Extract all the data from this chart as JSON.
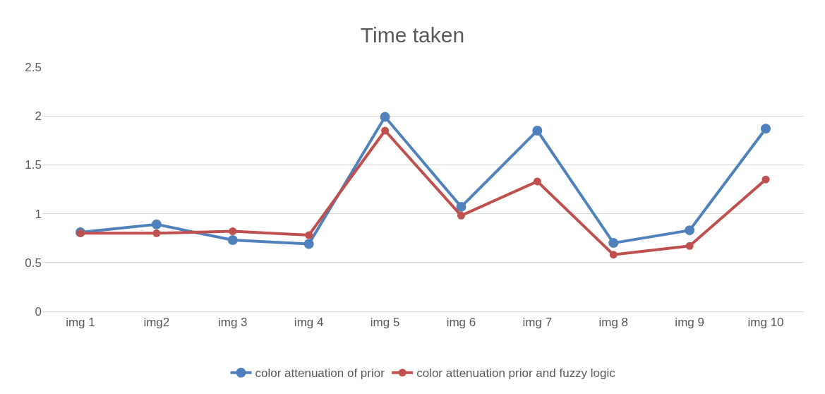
{
  "chart_data": {
    "type": "line",
    "title": "Time taken",
    "categories": [
      "img 1",
      "img2",
      "img 3",
      "img 4",
      "img 5",
      "img 6",
      "img 7",
      "img 8",
      "img 9",
      "img 10"
    ],
    "series": [
      {
        "name": "color attenuation of prior",
        "color": "#4f81bd",
        "values": [
          0.81,
          0.89,
          0.73,
          0.69,
          1.99,
          1.07,
          1.85,
          0.7,
          0.83,
          1.87
        ]
      },
      {
        "name": "color attenuation prior and fuzzy logic",
        "color": "#c0504d",
        "values": [
          0.8,
          0.8,
          0.82,
          0.78,
          1.85,
          0.98,
          1.33,
          0.58,
          0.67,
          1.35
        ]
      }
    ],
    "ylim": [
      0,
      2.5
    ],
    "yticks": [
      0,
      0.5,
      1,
      1.5,
      2,
      2.5
    ],
    "grid": "y",
    "legend": "bottom",
    "marker": "circle",
    "line_style": "solid"
  }
}
